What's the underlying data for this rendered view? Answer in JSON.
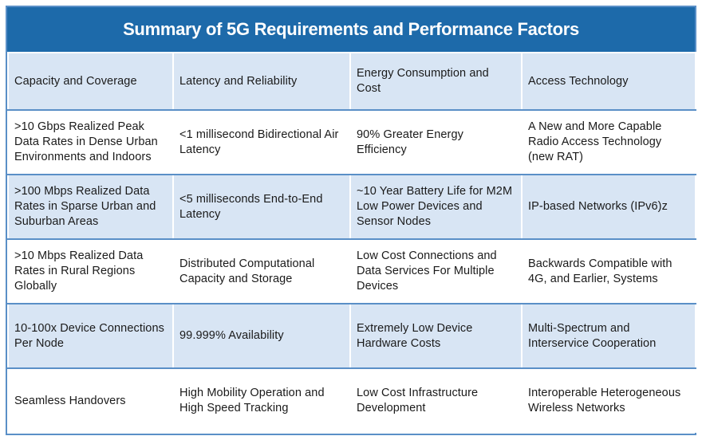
{
  "title": "Summary of 5G Requirements and Performance Factors",
  "colors": {
    "title_background": "#1d6aaa",
    "shaded_row": "#d8e5f4",
    "border": "#5a8fc7"
  },
  "headers": [
    "Capacity and Coverage",
    "Latency and Reliability",
    "Energy Consumption and Cost",
    "Access Technology"
  ],
  "rows": [
    [
      ">10 Gbps Realized Peak Data Rates in Dense Urban Environments and Indoors",
      "<1 millisecond Bidirectional Air Latency",
      "90% Greater Energy Efficiency",
      "A New and More Capable Radio Access Technology (new RAT)"
    ],
    [
      ">100 Mbps Realized Data Rates in Sparse Urban and Suburban Areas",
      "<5 milliseconds End-to-End Latency",
      "~10 Year Battery Life for M2M Low Power Devices and Sensor Nodes",
      "IP-based Networks (IPv6)z"
    ],
    [
      ">10 Mbps Realized Data Rates in Rural Regions Globally",
      "Distributed Computational Capacity and Storage",
      "Low Cost Connections and Data Services For Multiple Devices",
      "Backwards Compatible with 4G, and Earlier, Systems"
    ],
    [
      "10-100x Device Connections Per Node",
      "99.999% Availability",
      "Extremely Low Device Hardware Costs",
      "Multi-Spectrum and Interservice Cooperation"
    ],
    [
      "Seamless Handovers",
      "High Mobility Operation and High Speed Tracking",
      "Low Cost Infrastructure Development",
      "Interoperable Heterogeneous Wireless Networks"
    ]
  ]
}
